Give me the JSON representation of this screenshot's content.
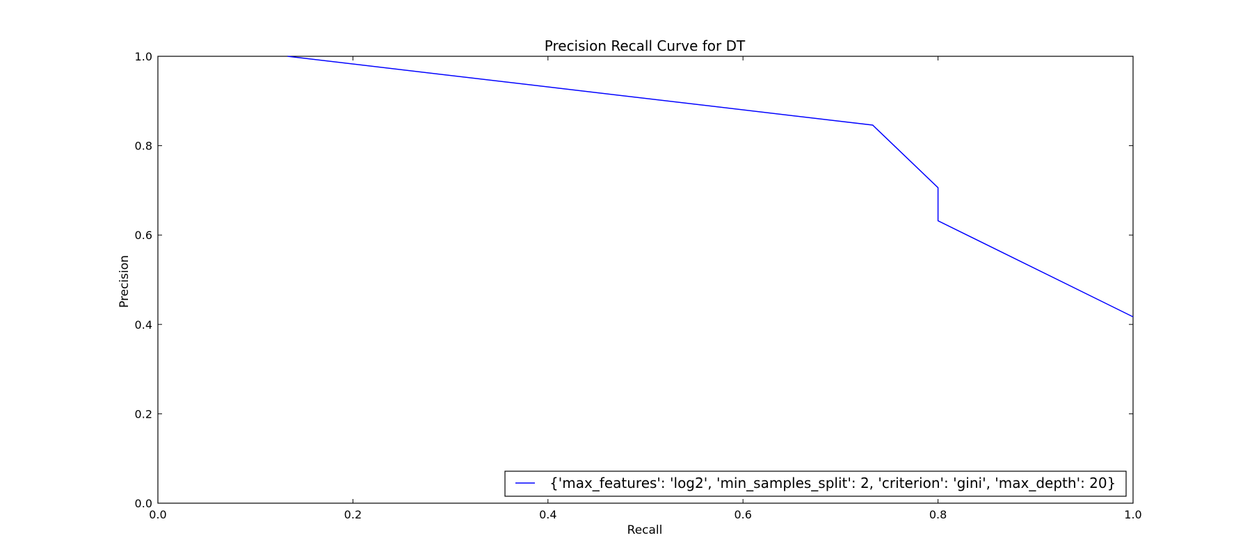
{
  "chart_data": {
    "type": "line",
    "title": "Precision Recall Curve for DT",
    "xlabel": "Recall",
    "ylabel": "Precision",
    "xlim": [
      0.0,
      1.0
    ],
    "ylim": [
      0.0,
      1.0
    ],
    "xticks": [
      0.0,
      0.2,
      0.4,
      0.6,
      0.8,
      1.0
    ],
    "yticks": [
      0.0,
      0.2,
      0.4,
      0.6,
      0.8,
      1.0
    ],
    "xtick_labels": [
      "0.0",
      "0.2",
      "0.4",
      "0.6",
      "0.8",
      "1.0"
    ],
    "ytick_labels": [
      "0.0",
      "0.2",
      "0.4",
      "0.6",
      "0.8",
      "1.0"
    ],
    "grid": false,
    "legend_position": "lower-right",
    "series": [
      {
        "name": "{'max_features': 'log2', 'min_samples_split': 2, 'criterion': 'gini', 'max_depth': 20}",
        "color": "#0000ff",
        "x": [
          0.133,
          0.733,
          0.8,
          0.8,
          1.0
        ],
        "y": [
          1.0,
          0.846,
          0.706,
          0.632,
          0.417
        ]
      }
    ]
  }
}
